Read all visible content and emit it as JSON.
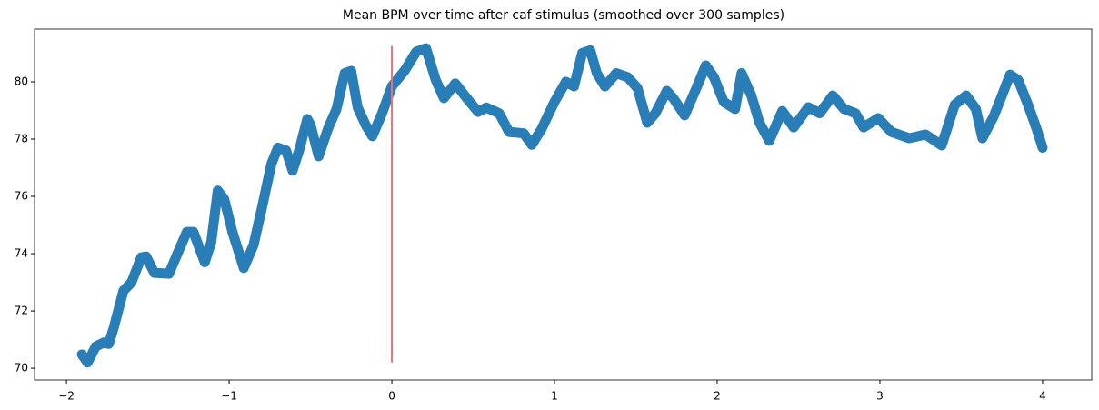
{
  "chart_data": {
    "type": "line",
    "title": "Mean BPM over time after caf stimulus (smoothed over 300 samples)",
    "x": [
      -1.905,
      -1.87,
      -1.82,
      -1.77,
      -1.74,
      -1.71,
      -1.65,
      -1.6,
      -1.54,
      -1.51,
      -1.46,
      -1.37,
      -1.32,
      -1.26,
      -1.22,
      -1.15,
      -1.11,
      -1.07,
      -1.03,
      -0.98,
      -0.91,
      -0.85,
      -0.8,
      -0.74,
      -0.7,
      -0.65,
      -0.61,
      -0.57,
      -0.52,
      -0.5,
      -0.45,
      -0.39,
      -0.34,
      -0.29,
      -0.25,
      -0.21,
      -0.16,
      -0.12,
      -0.06,
      0,
      0.08,
      0.15,
      0.21,
      0.27,
      0.32,
      0.39,
      0.46,
      0.53,
      0.58,
      0.66,
      0.72,
      0.81,
      0.86,
      0.92,
      1.0,
      1.07,
      1.12,
      1.17,
      1.22,
      1.26,
      1.31,
      1.38,
      1.45,
      1.51,
      1.57,
      1.62,
      1.69,
      1.73,
      1.8,
      1.87,
      1.93,
      1.98,
      2.04,
      2.11,
      2.15,
      2.21,
      2.26,
      2.32,
      2.4,
      2.47,
      2.56,
      2.63,
      2.71,
      2.78,
      2.85,
      2.9,
      2.99,
      3.07,
      3.18,
      3.28,
      3.38,
      3.46,
      3.53,
      3.59,
      3.63,
      3.7,
      3.74,
      3.8,
      3.85,
      3.91,
      3.96,
      4.0
    ],
    "series": [
      {
        "color": "#1f77b4",
        "values": [
          70.48,
          70.2,
          70.76,
          70.9,
          70.85,
          71.4,
          72.7,
          73.0,
          73.87,
          73.9,
          73.33,
          73.3,
          73.97,
          74.76,
          74.76,
          73.7,
          74.4,
          76.2,
          75.9,
          74.76,
          73.5,
          74.3,
          75.56,
          77.14,
          77.7,
          77.6,
          76.9,
          77.6,
          78.7,
          78.5,
          77.4,
          78.4,
          79.05,
          80.3,
          80.38,
          79.1,
          78.48,
          78.1,
          78.9,
          79.84,
          80.4,
          81.05,
          81.17,
          80.06,
          79.43,
          79.94,
          79.43,
          78.95,
          79.1,
          78.9,
          78.25,
          78.2,
          77.8,
          78.35,
          79.3,
          80.0,
          79.84,
          81.0,
          81.1,
          80.3,
          79.84,
          80.3,
          80.16,
          79.78,
          78.57,
          78.9,
          79.68,
          79.43,
          78.83,
          79.75,
          80.57,
          80.16,
          79.3,
          79.05,
          80.3,
          79.52,
          78.57,
          77.94,
          78.98,
          78.41,
          79.11,
          78.9,
          79.52,
          79.05,
          78.9,
          78.41,
          78.73,
          78.25,
          78.03,
          78.16,
          77.78,
          79.2,
          79.52,
          79.05,
          78.03,
          78.8,
          79.37,
          80.25,
          80.06,
          79.2,
          78.41,
          77.7
        ]
      }
    ],
    "vline": {
      "x": 0,
      "ymin": 70.2,
      "ymax": 81.25,
      "color": "#f0707a"
    },
    "xlim": [
      -2.196,
      4.302
    ],
    "ylim": [
      69.59,
      81.84
    ],
    "xticks": [
      {
        "value": -2,
        "label": "−2"
      },
      {
        "value": -1,
        "label": "−1"
      },
      0,
      1,
      2,
      3,
      4
    ],
    "yticks": [
      70,
      72,
      74,
      76,
      78,
      80
    ]
  }
}
